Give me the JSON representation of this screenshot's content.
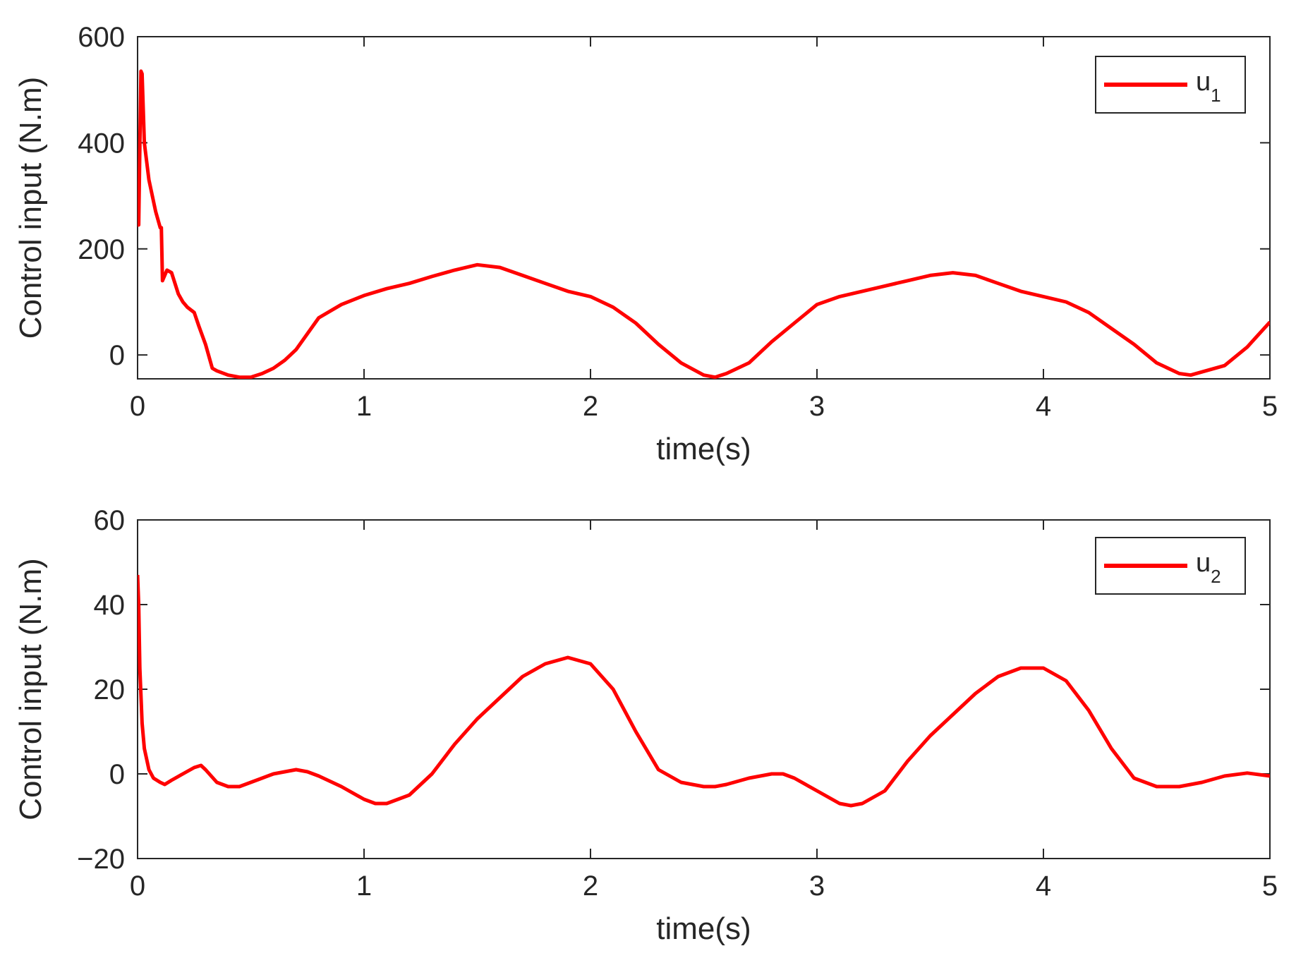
{
  "chart_data": [
    {
      "type": "line",
      "xlabel": "time(s)",
      "ylabel": "Control input (N.m)",
      "xlim": [
        0,
        5
      ],
      "ylim": [
        -45,
        600
      ],
      "xticks": [
        0,
        1,
        2,
        3,
        4,
        5
      ],
      "xtick_labels": [
        "0",
        "1",
        "2",
        "3",
        "4",
        "5"
      ],
      "yticks": [
        0,
        200,
        400,
        600
      ],
      "ytick_labels": [
        "0",
        "200",
        "400",
        "600"
      ],
      "grid": false,
      "legend_position": "top-right",
      "series": [
        {
          "name": "u1",
          "legend_main": "u",
          "legend_sub": "1",
          "color": "#ff0000",
          "x": [
            0,
            0.005,
            0.015,
            0.02,
            0.03,
            0.05,
            0.08,
            0.1,
            0.105,
            0.11,
            0.13,
            0.15,
            0.18,
            0.2,
            0.22,
            0.25,
            0.27,
            0.3,
            0.33,
            0.35,
            0.4,
            0.45,
            0.5,
            0.55,
            0.6,
            0.65,
            0.7,
            0.8,
            0.9,
            1.0,
            1.1,
            1.2,
            1.3,
            1.4,
            1.5,
            1.6,
            1.7,
            1.8,
            1.9,
            2.0,
            2.1,
            2.2,
            2.3,
            2.4,
            2.5,
            2.55,
            2.6,
            2.7,
            2.8,
            2.9,
            3.0,
            3.1,
            3.2,
            3.3,
            3.4,
            3.5,
            3.6,
            3.7,
            3.8,
            3.9,
            4.0,
            4.1,
            4.2,
            4.3,
            4.4,
            4.5,
            4.6,
            4.65,
            4.7,
            4.8,
            4.9,
            5.0
          ],
          "values": [
            245,
            245,
            535,
            530,
            400,
            330,
            270,
            240,
            240,
            140,
            160,
            155,
            115,
            100,
            90,
            80,
            55,
            20,
            -25,
            -30,
            -38,
            -42,
            -42,
            -35,
            -25,
            -10,
            10,
            70,
            95,
            112,
            125,
            135,
            148,
            160,
            170,
            165,
            150,
            135,
            120,
            110,
            90,
            60,
            20,
            -15,
            -38,
            -42,
            -35,
            -15,
            25,
            60,
            95,
            110,
            120,
            130,
            140,
            150,
            155,
            150,
            135,
            120,
            110,
            100,
            80,
            50,
            20,
            -15,
            -35,
            -38,
            -32,
            -20,
            15,
            62
          ]
        }
      ]
    },
    {
      "type": "line",
      "xlabel": "time(s)",
      "ylabel": "Control input (N.m)",
      "xlim": [
        0,
        5
      ],
      "ylim": [
        -20,
        60
      ],
      "xticks": [
        0,
        1,
        2,
        3,
        4,
        5
      ],
      "xtick_labels": [
        "0",
        "1",
        "2",
        "3",
        "4",
        "5"
      ],
      "yticks": [
        -20,
        0,
        20,
        40,
        60
      ],
      "ytick_labels": [
        "−20",
        "0",
        "20",
        "40",
        "60"
      ],
      "grid": false,
      "legend_position": "top-right",
      "series": [
        {
          "name": "u2",
          "legend_main": "u",
          "legend_sub": "2",
          "color": "#ff0000",
          "x": [
            0,
            0.005,
            0.01,
            0.02,
            0.03,
            0.05,
            0.07,
            0.1,
            0.12,
            0.15,
            0.2,
            0.25,
            0.28,
            0.3,
            0.35,
            0.4,
            0.45,
            0.5,
            0.55,
            0.6,
            0.65,
            0.7,
            0.75,
            0.8,
            0.9,
            1.0,
            1.05,
            1.1,
            1.2,
            1.3,
            1.4,
            1.5,
            1.6,
            1.7,
            1.8,
            1.9,
            2.0,
            2.1,
            2.2,
            2.3,
            2.4,
            2.5,
            2.55,
            2.6,
            2.7,
            2.8,
            2.85,
            2.9,
            3.0,
            3.1,
            3.15,
            3.2,
            3.3,
            3.4,
            3.5,
            3.6,
            3.7,
            3.8,
            3.9,
            4.0,
            4.1,
            4.2,
            4.3,
            4.4,
            4.5,
            4.6,
            4.65,
            4.7,
            4.8,
            4.9,
            5.0
          ],
          "values": [
            47,
            40,
            25,
            12,
            6,
            1,
            -1,
            -2,
            -2.5,
            -1.5,
            0,
            1.5,
            2,
            1,
            -2,
            -3,
            -3,
            -2,
            -1,
            0,
            0.5,
            1,
            0.5,
            -0.5,
            -3,
            -6,
            -7,
            -7,
            -5,
            0,
            7,
            13,
            18,
            23,
            26,
            27.5,
            26,
            20,
            10,
            1,
            -2,
            -3,
            -3,
            -2.5,
            -1,
            0,
            0,
            -1,
            -4,
            -7,
            -7.5,
            -7,
            -4,
            3,
            9,
            14,
            19,
            23,
            25,
            25,
            22,
            15,
            6,
            -1,
            -3,
            -3,
            -2.5,
            -2,
            -0.5,
            0.2,
            -0.5
          ]
        }
      ]
    }
  ]
}
